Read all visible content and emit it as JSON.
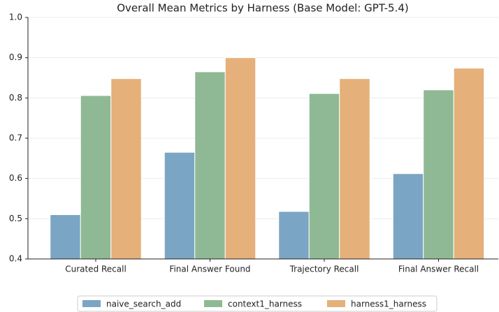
{
  "chart_data": {
    "type": "bar",
    "title": "Overall Mean Metrics by Harness (Base Model: GPT-5.4)",
    "categories": [
      "Curated Recall",
      "Final Answer Found",
      "Trajectory Recall",
      "Final Answer Recall"
    ],
    "series": [
      {
        "name": "naive_search_add",
        "color": "#7ba5c4",
        "values": [
          0.51,
          0.665,
          0.518,
          0.612
        ]
      },
      {
        "name": "context1_harness",
        "color": "#8fb994",
        "values": [
          0.806,
          0.865,
          0.811,
          0.82
        ]
      },
      {
        "name": "harness1_harness",
        "color": "#e5b07a",
        "values": [
          0.848,
          0.9,
          0.848,
          0.874
        ]
      }
    ],
    "ylim": [
      0.4,
      1.0
    ],
    "yticks": [
      0.4,
      0.5,
      0.6,
      0.7,
      0.8,
      0.9,
      {
        "value": 1.0,
        "label": "1.0"
      }
    ],
    "grid": true,
    "legend": "bottom"
  }
}
